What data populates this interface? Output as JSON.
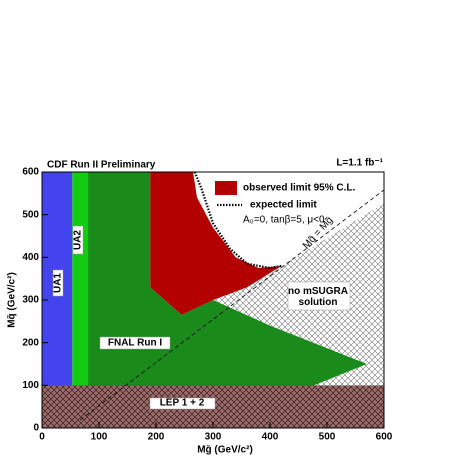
{
  "chart_data": {
    "type": "region",
    "title": "CDF Run II Preliminary",
    "luminosity": "L=1.1 fb⁻¹",
    "x_label": "Mg̃ (GeV/c²)",
    "y_label": "Mq̃ (GeV/c²)",
    "xlim": [
      0,
      600
    ],
    "ylim": [
      0,
      600
    ],
    "xticks": [
      0,
      100,
      200,
      300,
      400,
      500,
      600
    ],
    "yticks": [
      0,
      100,
      200,
      300,
      400,
      500,
      600
    ],
    "note": "A₀=0, tanβ=5, μ<0",
    "regions": [
      {
        "name": "no mSUGRA solution",
        "color": "#888888",
        "hatch": true,
        "x": [
          300,
          420,
          600,
          600,
          420
        ],
        "y": [
          300,
          380,
          527,
          100,
          100
        ]
      },
      {
        "name": "FNAL Run I",
        "color": "#1a8a1a",
        "hatch": false,
        "x": [
          80,
          190,
          190,
          245,
          300,
          400,
          570,
          440,
          270,
          90,
          80
        ],
        "y": [
          600,
          600,
          330,
          265,
          300,
          240,
          150,
          80,
          75,
          80,
          100
        ]
      },
      {
        "name": "observed limit 95% C.L.",
        "color": "#b30000",
        "hatch": false,
        "x": [
          190,
          265,
          272,
          300,
          340,
          380,
          420,
          360,
          300,
          245,
          190
        ],
        "y": [
          600,
          600,
          540,
          470,
          400,
          375,
          380,
          330,
          300,
          265,
          330
        ]
      },
      {
        "name": "UA2",
        "color": "#11cc11",
        "hatch": false,
        "x": [
          53,
          81,
          81,
          90,
          53
        ],
        "y": [
          600,
          600,
          100,
          80,
          80
        ]
      },
      {
        "name": "UA1",
        "color": "#4444ee",
        "hatch": false,
        "x": [
          0,
          53,
          53,
          0
        ],
        "y": [
          600,
          600,
          80,
          80
        ]
      },
      {
        "name": "LEP 1 + 2",
        "color": "#9c6b6b",
        "hatch": true,
        "x": [
          0,
          600,
          600,
          0
        ],
        "y": [
          100,
          100,
          0,
          0
        ]
      }
    ],
    "lines": [
      {
        "name": "expected limit",
        "color": "#000000",
        "style": "dotted",
        "x": [
          268,
          280,
          300,
          330,
          360,
          400,
          420
        ],
        "y": [
          600,
          560,
          480,
          420,
          385,
          375,
          380
        ]
      },
      {
        "name": "Mq̃ = Mg̃",
        "color": "#000000",
        "style": "dashed",
        "x": [
          67,
          600
        ],
        "y": [
          19,
          558
        ]
      }
    ]
  }
}
